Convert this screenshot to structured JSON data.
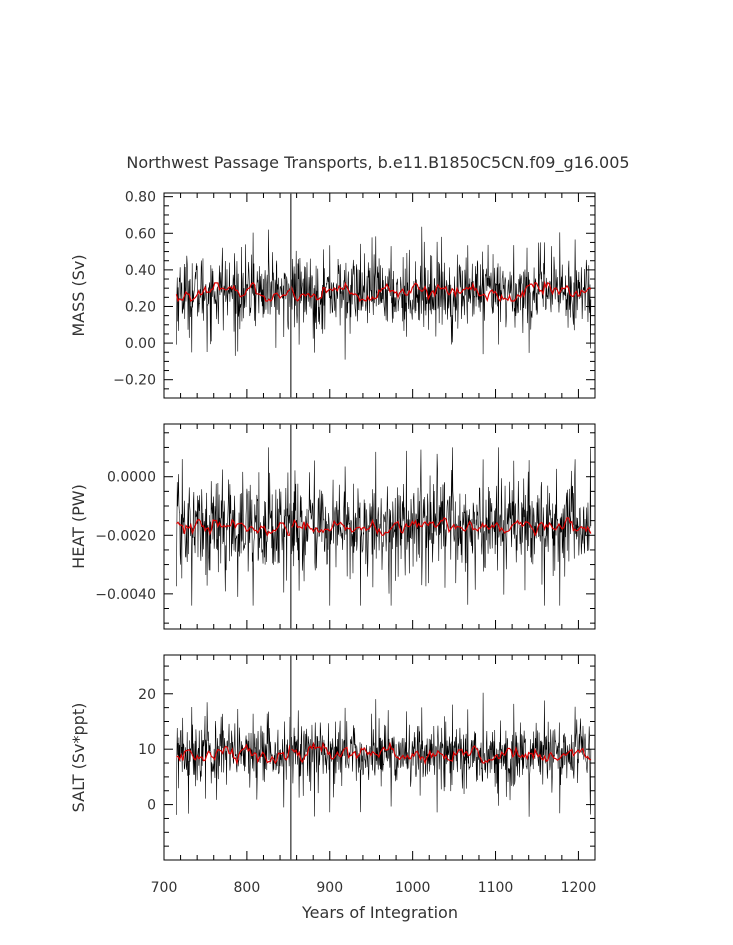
{
  "title": "Northwest Passage Transports, b.e11.B1850C5CN.f09_g16.005",
  "xlabel": "Years of Integration",
  "colors": {
    "raw": "#000000",
    "smooth": "#dd0000",
    "marker": "#555555"
  },
  "chart_data": {
    "type": "line",
    "xlim": [
      700,
      1220
    ],
    "xticks": [
      700,
      800,
      900,
      1000,
      1100,
      1200
    ],
    "xtick_labels": [
      "700",
      "800",
      "900",
      "1000",
      "1100",
      "1200"
    ],
    "x_range": [
      715,
      1215
    ],
    "marker_x": 853,
    "panels": [
      {
        "ylabel": "MASS (Sv)",
        "ylim": [
          -0.3,
          0.82
        ],
        "yticks": [
          -0.2,
          0.0,
          0.2,
          0.4,
          0.6,
          0.8
        ],
        "ytick_labels": [
          "−0.20",
          "0.00",
          "0.20",
          "0.40",
          "0.60",
          "0.80"
        ],
        "series": [
          {
            "kind": "raw",
            "mean": 0.28,
            "spread": 0.1,
            "max": 0.72,
            "min": -0.19
          },
          {
            "kind": "smoothed",
            "mean": 0.28,
            "range": [
              0.23,
              0.33
            ]
          }
        ]
      },
      {
        "ylabel": "HEAT (PW)",
        "ylim": [
          -0.0052,
          0.0018
        ],
        "yticks": [
          -0.004,
          -0.002,
          0.0
        ],
        "ytick_labels": [
          "−0.0040",
          "−0.0020",
          "0.0000"
        ],
        "series": [
          {
            "kind": "raw",
            "mean": -0.0017,
            "spread": 0.0008,
            "max": 0.001,
            "min": -0.0044
          },
          {
            "kind": "smoothed",
            "mean": -0.0017,
            "range": [
              -0.002,
              -0.0014
            ]
          }
        ]
      },
      {
        "ylabel": "SALT (Sv*ppt)",
        "ylim": [
          -10,
          27
        ],
        "yticks": [
          0,
          10,
          20
        ],
        "ytick_labels": [
          "0",
          "10",
          "20"
        ],
        "series": [
          {
            "kind": "raw",
            "mean": 9.0,
            "spread": 3.0,
            "max": 24,
            "min": -6
          },
          {
            "kind": "smoothed",
            "mean": 9.0,
            "range": [
              7.5,
              11
            ]
          }
        ]
      }
    ]
  }
}
